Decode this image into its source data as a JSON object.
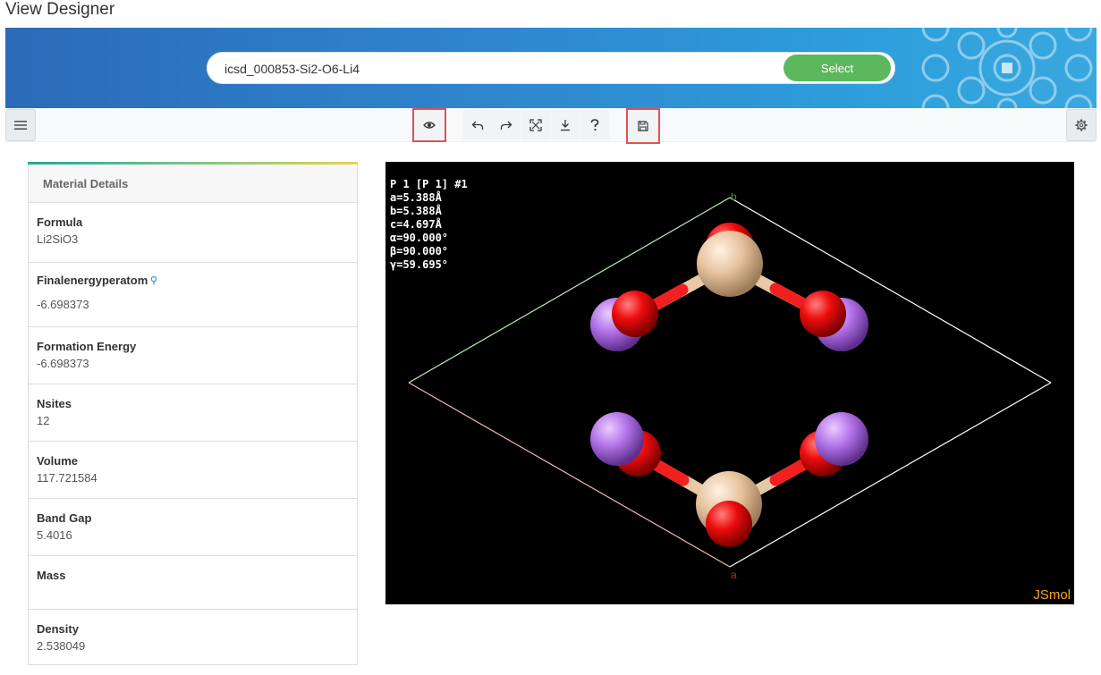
{
  "page": {
    "title": "View Designer"
  },
  "search": {
    "value": "icsd_000853-Si2-O6-Li4",
    "select_label": "Select"
  },
  "toolbar": {
    "menu_icon": "hamburger-menu-icon",
    "tools": [
      "eye-icon",
      "undo-icon",
      "redo-icon",
      "fullscreen-icon",
      "download-icon",
      "help-icon",
      "save-icon"
    ],
    "settings_icon": "gear-icon",
    "highlight_color": "#e05353"
  },
  "details": {
    "header": "Material Details",
    "properties": [
      {
        "label": "Formula",
        "value": "Li2SiO3"
      },
      {
        "label": "Finalenergyperatom",
        "value": "-6.698373",
        "has_info": true
      },
      {
        "label": "Formation Energy",
        "value": "-6.698373"
      },
      {
        "label": "Nsites",
        "value": "12"
      },
      {
        "label": "Volume",
        "value": "117.721584"
      },
      {
        "label": "Band Gap",
        "value": "5.4016"
      },
      {
        "label": "Mass",
        "value": ""
      },
      {
        "label": "Density",
        "value": "2.538049"
      }
    ]
  },
  "viewer": {
    "cell_info": [
      "P 1 [P 1] #1",
      "a=5.388Å",
      "b=5.388Å",
      "c=4.697Å",
      "α=90.000°",
      "β=90.000°",
      "γ=59.695°"
    ],
    "axis_b": "b",
    "axis_a": "a",
    "brand": "JSmol",
    "colors": {
      "oxygen": "#ff0d0d",
      "silicon": "#f0c8a0",
      "lithium": "#cc80ff"
    }
  }
}
